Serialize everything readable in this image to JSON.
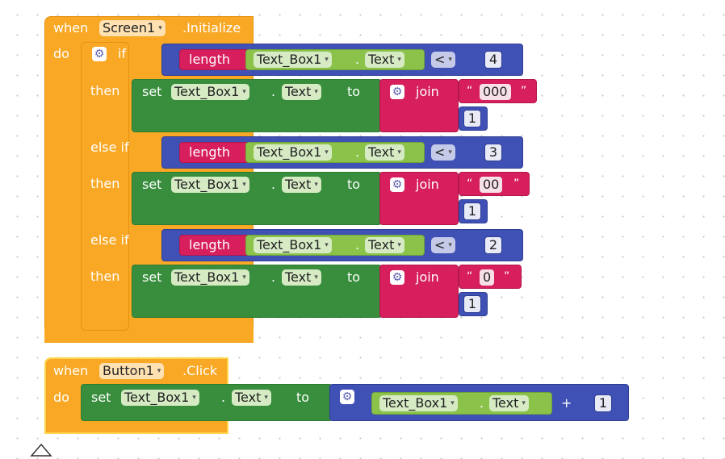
{
  "colors": {
    "event": "#f9a825",
    "setter": "#388e3c",
    "component": "#8bc34a",
    "text_block": "#d61f5c",
    "math": "#3f51b5"
  },
  "event1": {
    "when": "when",
    "component": "Screen1",
    "event": ".Initialize",
    "do": "do",
    "if": "if",
    "then": "then",
    "else_if": "else if"
  },
  "branches": [
    {
      "cond": {
        "fn": "length",
        "comp": "Text_Box1",
        "dot": ".",
        "prop": "Text",
        "op": "<",
        "num": "4"
      },
      "set": {
        "set": "set",
        "comp": "Text_Box1",
        "dot": ".",
        "prop": "Text",
        "to": "to"
      },
      "join": {
        "label": "join",
        "prefix": "000",
        "num": "1"
      }
    },
    {
      "cond": {
        "fn": "length",
        "comp": "Text_Box1",
        "dot": ".",
        "prop": "Text",
        "op": "<",
        "num": "3"
      },
      "set": {
        "set": "set",
        "comp": "Text_Box1",
        "dot": ".",
        "prop": "Text",
        "to": "to"
      },
      "join": {
        "label": "join",
        "prefix": "00",
        "num": "1"
      }
    },
    {
      "cond": {
        "fn": "length",
        "comp": "Text_Box1",
        "dot": ".",
        "prop": "Text",
        "op": "<",
        "num": "2"
      },
      "set": {
        "set": "set",
        "comp": "Text_Box1",
        "dot": ".",
        "prop": "Text",
        "to": "to"
      },
      "join": {
        "label": "join",
        "prefix": "0",
        "num": "1"
      }
    }
  ],
  "event2": {
    "when": "when",
    "component": "Button1",
    "event": ".Click",
    "do": "do",
    "set": "set",
    "comp": "Text_Box1",
    "dot": ".",
    "prop": "Text",
    "to": "to",
    "add_comp": "Text_Box1",
    "add_prop": "Text",
    "plus": "+",
    "num": "1"
  },
  "icons": {
    "mutator": "gear-icon",
    "dropdown": "chevron-down-icon",
    "trash": "trash-icon"
  },
  "glyphs": {
    "caret": "▾",
    "gear": "⚙",
    "open_quote": "“",
    "close_quote": "”"
  }
}
